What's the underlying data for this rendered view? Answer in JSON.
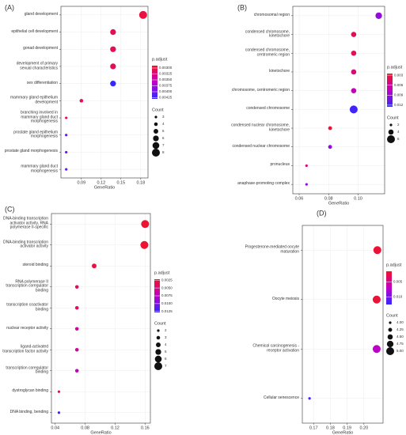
{
  "chart_data": [
    {
      "type": "dot",
      "label": "(A)",
      "xlabel": "GeneRatio",
      "categories": [
        "gland development",
        "epithelial cell development",
        "gonad development",
        "development of primary\nsexual characteristics",
        "sex differentiation",
        "mammary gland epithelium\ndevelopment",
        "branching involved in\nmammary gland duct\nmorphogenesis",
        "prostate gland epithelium\nmorphogenesis",
        "prostate gland morphogenesis",
        "mammary gland duct\nmorphogenesis"
      ],
      "values": [
        0.1836,
        0.138,
        0.138,
        0.138,
        0.138,
        0.09,
        0.067,
        0.067,
        0.067,
        0.067
      ],
      "counts": [
        8,
        6,
        6,
        6,
        6,
        4,
        3,
        3,
        3,
        3
      ],
      "padjust": [
        0.003,
        0.0031,
        0.0031,
        0.0031,
        0.0043,
        0.0031,
        0.0031,
        0.004,
        0.004,
        0.004
      ],
      "xlim": [
        0.059,
        0.191
      ],
      "xticks": [
        0.09,
        0.12,
        0.15,
        0.18
      ],
      "color_title": "p.adjust",
      "clim": [
        0.0029,
        0.0043
      ],
      "cticks": [
        {
          "value": 0.003,
          "label": "0.00300"
        },
        {
          "value": 0.00325,
          "label": "0.00325"
        },
        {
          "value": 0.0035,
          "label": "0.00350"
        },
        {
          "value": 0.00375,
          "label": "0.00375"
        },
        {
          "value": 0.004,
          "label": "0.00400"
        },
        {
          "value": 0.00425,
          "label": "0.00425"
        }
      ],
      "size_title": "Count",
      "sticks": [
        3,
        4,
        5,
        6,
        7,
        8
      ]
    },
    {
      "type": "dot",
      "label": "(B)",
      "xlabel": "GeneRatio",
      "categories": [
        "chromosomal region",
        "condensed chromosome,\nkinetochore",
        "condensed chromosome,\ncentromeric region",
        "kinetochore",
        "chromosome, centromeric region",
        "condensed chromosome",
        "condensed nuclear chromosome,\nkinetochore",
        "condensed nuclear chromosome",
        "pronucleus",
        "anaphase-promoting complex"
      ],
      "values": [
        0.114,
        0.097,
        0.097,
        0.097,
        0.097,
        0.097,
        0.081,
        0.081,
        0.065,
        0.065
      ],
      "counts": [
        5,
        4,
        4,
        4,
        4,
        6,
        3,
        3,
        2,
        2
      ],
      "padjust": [
        0.009,
        0.004,
        0.004,
        0.005,
        0.007,
        0.012,
        0.003,
        0.009,
        0.005,
        0.009
      ],
      "xlim": [
        0.0557,
        0.118
      ],
      "xticks": [
        0.06,
        0.08,
        {
          "value": 0.1,
          "label": "0.10"
        }
      ],
      "color_title": "p.adjust",
      "clim": [
        0.0025,
        0.0125
      ],
      "cticks": [
        0.003,
        0.006,
        0.009,
        0.012
      ],
      "size_title": "Count",
      "sticks": [
        2,
        4,
        6
      ]
    },
    {
      "type": "dot",
      "label": "(C)",
      "xlabel": "GeneRatio",
      "categories": [
        "DNA-binding transcription\nactivator activity, RNA\npolymerase II-specific",
        "DNA-binding transcription\nactivator activity",
        "steroid binding",
        "RNA polymerase II\ntranscription coregulator\nbinding",
        "transcription coactivator\nbinding",
        "nuclear receptor activity",
        "ligand-activated\ntranscription factor activity",
        "transcription coregulator\nbinding",
        "dystroglycan binding",
        "DNA binding, bending"
      ],
      "values": [
        0.16,
        0.159,
        0.092,
        0.069,
        0.069,
        0.069,
        0.069,
        0.069,
        0.045,
        0.045
      ],
      "counts": [
        7,
        7,
        4,
        3,
        3,
        3,
        3,
        3,
        2,
        2
      ],
      "padjust": [
        0.0025,
        0.0025,
        0.003,
        0.004,
        0.004,
        0.006,
        0.006,
        0.007,
        0.003,
        0.0125
      ],
      "xlim": [
        0.035,
        0.167
      ],
      "xticks": [
        0.04,
        0.08,
        0.12,
        0.16
      ],
      "color_title": "p.adjust",
      "clim": [
        0.0022,
        0.0128
      ],
      "cticks": [
        0.0025,
        {
          "value": 0.005,
          "label": "0.0050"
        },
        0.0075,
        {
          "value": 0.01,
          "label": "0.0100"
        },
        0.0125
      ],
      "size_title": "Count",
      "sticks": [
        2,
        3,
        4,
        5,
        6,
        7
      ]
    },
    {
      "type": "dot",
      "label": "(D)",
      "xlabel": "GeneRatio",
      "categories": [
        "Progesterone-mediated oocyte\nmaturation",
        "Oocyte meiosis",
        "Chemical carcinogenesis -\nreceptor activation",
        "Cellular senescence"
      ],
      "values": [
        0.208,
        0.2076,
        0.2076,
        0.1676
      ],
      "counts": [
        5,
        5,
        5,
        4
      ],
      "padjust": [
        0.002,
        0.002,
        0.007,
        0.012
      ],
      "xlim": [
        0.1633,
        0.2114
      ],
      "xticks": [
        0.17,
        0.18,
        0.19,
        {
          "value": 0.2,
          "label": "0.20"
        }
      ],
      "color_title": "p.adjust",
      "clim": [
        0.0015,
        0.0125
      ],
      "cticks": [
        0.005,
        {
          "value": 0.01,
          "label": "0.010"
        }
      ],
      "size_title": "Count",
      "sticks": [
        {
          "value": 4,
          "label": "4.00"
        },
        4.25,
        {
          "value": 4.5,
          "label": "4.50"
        },
        4.75,
        {
          "value": 5,
          "label": "5.00"
        }
      ]
    }
  ]
}
